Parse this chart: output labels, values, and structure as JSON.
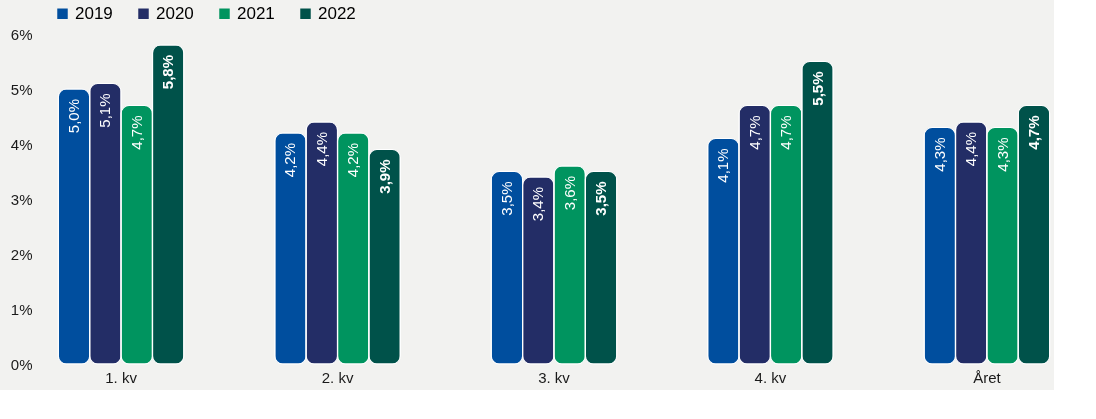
{
  "chart_data": {
    "type": "bar",
    "categories": [
      "1. kv",
      "2. kv",
      "3. kv",
      "4. kv",
      "Året"
    ],
    "series": [
      {
        "name": "2019",
        "color": "#004e9e",
        "values": [
          5.0,
          4.2,
          3.5,
          4.1,
          4.3
        ],
        "value_labels": [
          "5,0%",
          "4,2%",
          "3,5%",
          "4,1%",
          "4,3%"
        ]
      },
      {
        "name": "2020",
        "color": "#232d66",
        "values": [
          5.1,
          4.4,
          3.4,
          4.7,
          4.4
        ],
        "value_labels": [
          "5,1%",
          "4,4%",
          "3,4%",
          "4,7%",
          "4,4%"
        ]
      },
      {
        "name": "2021",
        "color": "#00945f",
        "values": [
          4.7,
          4.2,
          3.6,
          4.7,
          4.3
        ],
        "value_labels": [
          "4,7%",
          "4,2%",
          "3,6%",
          "4,7%",
          "4,3%"
        ]
      },
      {
        "name": "2022",
        "color": "#00524a",
        "values": [
          5.8,
          3.9,
          3.5,
          5.5,
          4.7
        ],
        "value_labels": [
          "5,8%",
          "3,9%",
          "3,5%",
          "5,5%",
          "4,7%"
        ]
      }
    ],
    "ylim": [
      0,
      6
    ],
    "yticks": [
      {
        "value": 0,
        "label": "0%"
      },
      {
        "value": 1,
        "label": "1%"
      },
      {
        "value": 2,
        "label": "2%"
      },
      {
        "value": 3,
        "label": "3%"
      },
      {
        "value": 4,
        "label": "4%"
      },
      {
        "value": 5,
        "label": "5%"
      },
      {
        "value": 6,
        "label": "6%"
      }
    ],
    "grid": false,
    "legend": "top left"
  }
}
